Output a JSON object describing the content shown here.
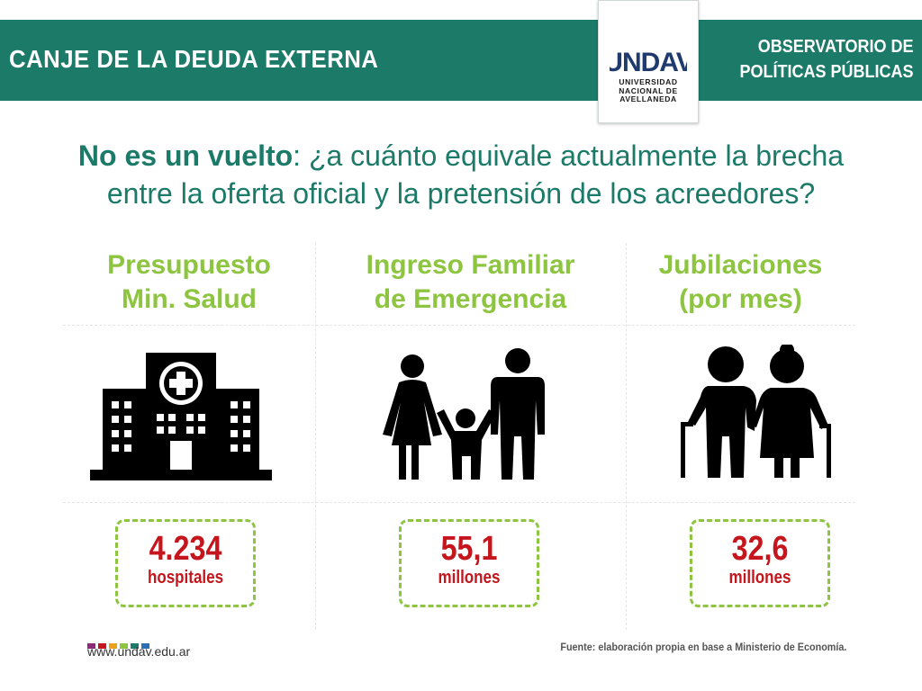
{
  "header": {
    "title": "CANJE DE LA DEUDA EXTERNA",
    "observatory_line1": "OBSERVATORIO DE",
    "observatory_line2": "POLÍTICAS PÚBLICAS",
    "logo_letters": "UNDAV",
    "logo_line1": "UNIVERSIDAD",
    "logo_line2": "NACIONAL DE",
    "logo_line3": "AVELLANEDA"
  },
  "headline": {
    "bold": "No es un vuelto",
    "rest_line1": ": ¿a cuánto equivale actualmente la brecha",
    "line2": "entre la oferta oficial y la pretensión de los acreedores?"
  },
  "columns": [
    {
      "label_line1": "Presupuesto",
      "label_line2": "Min. Salud",
      "icon": "hospital-icon",
      "value": "4.234",
      "unit": "hospitales"
    },
    {
      "label_line1": "Ingreso Familiar",
      "label_line2": "de Emergencia",
      "icon": "family-icon",
      "value": "55,1",
      "unit": "millones"
    },
    {
      "label_line1": "Jubilaciones",
      "label_line2": "(por mes)",
      "icon": "elderly-couple-icon",
      "value": "32,6",
      "unit": "millones"
    }
  ],
  "footer": {
    "website": "www.undav.edu.ar",
    "source": "Fuente: elaboración propia en base a Ministerio de Economía.",
    "dot_colors": [
      "#8e2a7a",
      "#c4161c",
      "#e8a21b",
      "#8dc540",
      "#1b7a68",
      "#2a6fb5"
    ]
  },
  "colors": {
    "teal": "#1b7a68",
    "green": "#8dc540",
    "red": "#c4161c"
  }
}
